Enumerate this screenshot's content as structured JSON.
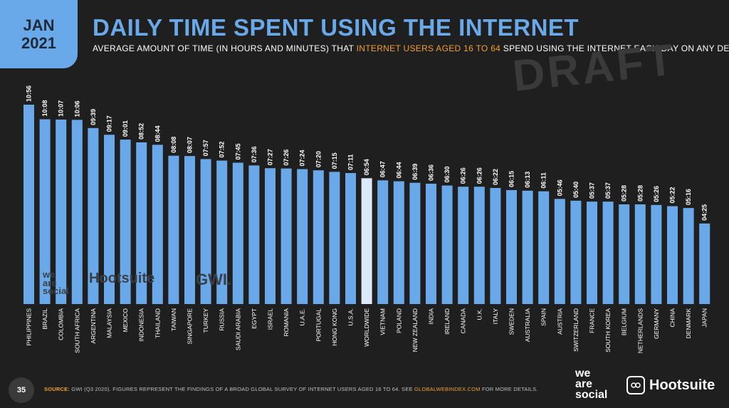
{
  "badge": {
    "month": "JAN",
    "year": "2021"
  },
  "title": "DAILY TIME SPENT USING THE INTERNET",
  "subtitle": {
    "before": "AVERAGE AMOUNT OF TIME (IN HOURS AND MINUTES) THAT ",
    "highlight": "INTERNET USERS AGED 16 TO 64",
    "after": " SPEND USING THE INTERNET EACH DAY ON ANY DEVICE"
  },
  "draft_label": "DRAFT",
  "watermarks": {
    "was": "we are social",
    "hootsuite": "Hootsuite",
    "gwi": "GWI."
  },
  "footer": {
    "page": "35",
    "source_label": "SOURCE:",
    "source_text": " GWI (Q3 2020). FIGURES REPRESENT THE FINDINGS OF A BROAD GLOBAL SURVEY OF INTERNET USERS AGED 16 TO 64. SEE ",
    "link": "GLOBALWEBINDEX.COM",
    "after_link": " FOR MORE DETAILS."
  },
  "logos": {
    "was_line1": "we",
    "was_line2": "are",
    "was_line3": "social",
    "hootsuite": "Hootsuite"
  },
  "colors": {
    "bar": "#6aa9e9",
    "highlight_bar": "#dbe9fb",
    "background": "#1f1f1f",
    "accent": "#f0a030"
  },
  "chart_data": {
    "type": "bar",
    "unit": "hh:mm",
    "categories": [
      "PHILIPPINES",
      "BRAZIL",
      "COLOMBIA",
      "SOUTH AFRICA",
      "ARGENTINA",
      "MALAYSIA",
      "MEXICO",
      "INDONESIA",
      "THAILAND",
      "TAIWAN",
      "SINGAPORE",
      "TURKEY",
      "RUSSIA",
      "SAUDI ARABIA",
      "EGYPT",
      "ISRAEL",
      "ROMANIA",
      "U.A.E.",
      "PORTUGAL",
      "HONG KONG",
      "U.S.A.",
      "WORLDWIDE",
      "VIETNAM",
      "POLAND",
      "NEW ZEALAND",
      "INDIA",
      "IRELAND",
      "CANADA",
      "U.K.",
      "ITALY",
      "SWEDEN",
      "AUSTRALIA",
      "SPAIN",
      "AUSTRIA",
      "SWITZERLAND",
      "FRANCE",
      "SOUTH KOREA",
      "BELGIUM",
      "NETHERLANDS",
      "GERMANY",
      "CHINA",
      "DENMARK",
      "JAPAN"
    ],
    "labels": [
      "10:56",
      "10:08",
      "10:07",
      "10:06",
      "09:39",
      "09:17",
      "09:01",
      "08:52",
      "08:44",
      "08:08",
      "08:07",
      "07:57",
      "07:52",
      "07:45",
      "07:36",
      "07:27",
      "07:26",
      "07:24",
      "07:20",
      "07:15",
      "07:11",
      "06:54",
      "06:47",
      "06:44",
      "06:39",
      "06:36",
      "06:30",
      "06:26",
      "06:26",
      "06:22",
      "06:15",
      "06:13",
      "06:11",
      "05:46",
      "05:40",
      "05:37",
      "05:37",
      "05:28",
      "05:28",
      "05:26",
      "05:22",
      "05:16",
      "04:25"
    ],
    "highlight": "WORLDWIDE"
  }
}
